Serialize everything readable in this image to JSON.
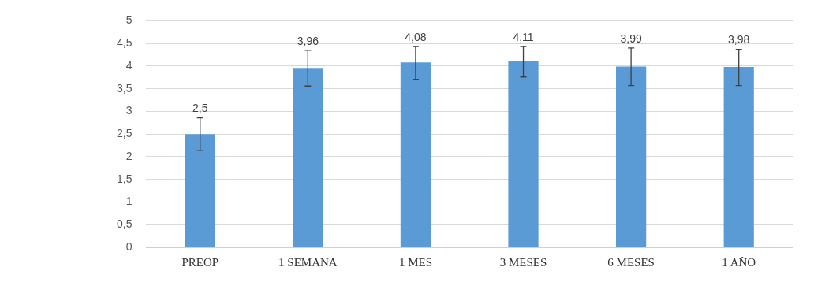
{
  "chart_data": {
    "type": "bar",
    "categories": [
      "PREOP",
      "1 SEMANA",
      "1 MES",
      "3 MESES",
      "6 MESES",
      "1 AÑO"
    ],
    "values": [
      2.5,
      3.96,
      4.08,
      4.11,
      3.99,
      3.98
    ],
    "value_labels": [
      "2,5",
      "3,96",
      "4,08",
      "4,11",
      "3,99",
      "3,98"
    ],
    "errors": [
      [
        2.14,
        2.86
      ],
      [
        3.56,
        4.35
      ],
      [
        3.71,
        4.43
      ],
      [
        3.76,
        4.43
      ],
      [
        3.57,
        4.4
      ],
      [
        3.57,
        4.37
      ]
    ],
    "color": "#5b9bd5",
    "ylim": [
      0,
      5
    ],
    "yticks": [
      0,
      {
        "value": 0.5,
        "label": "0,5"
      },
      1,
      {
        "value": 1.5,
        "label": "1,5"
      },
      2,
      {
        "value": 2.5,
        "label": "2,5"
      },
      3,
      {
        "value": 3.5,
        "label": "3,5"
      },
      4,
      {
        "value": 4.5,
        "label": "4,5"
      },
      5
    ],
    "grid": "y",
    "legend": false
  }
}
